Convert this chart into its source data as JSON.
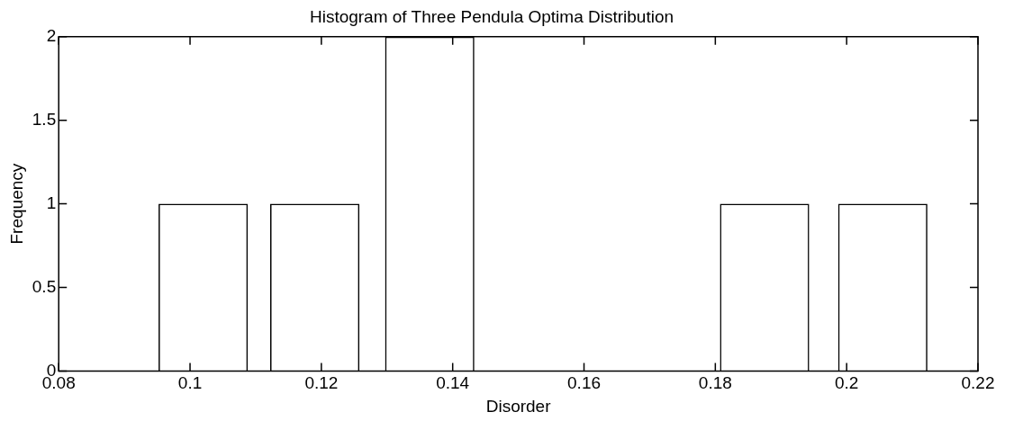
{
  "chart_data": {
    "type": "bar",
    "title": "Histogram of Three Pendula Optima Distribution",
    "xlabel": "Disorder",
    "ylabel": "Frequency",
    "x": [
      0.102,
      0.119,
      0.1365,
      0.1875,
      0.2055
    ],
    "values": [
      1,
      1,
      2,
      1,
      1
    ],
    "color": "#000000",
    "xlim": [
      0.08,
      0.22
    ],
    "xticks": [
      0.08,
      0.1,
      0.12,
      0.14,
      0.16,
      0.18,
      0.2,
      0.22
    ],
    "ylim": [
      0,
      2
    ],
    "yticks": [
      0,
      0.5,
      1,
      1.5,
      2
    ],
    "grid": false,
    "legend": false
  }
}
